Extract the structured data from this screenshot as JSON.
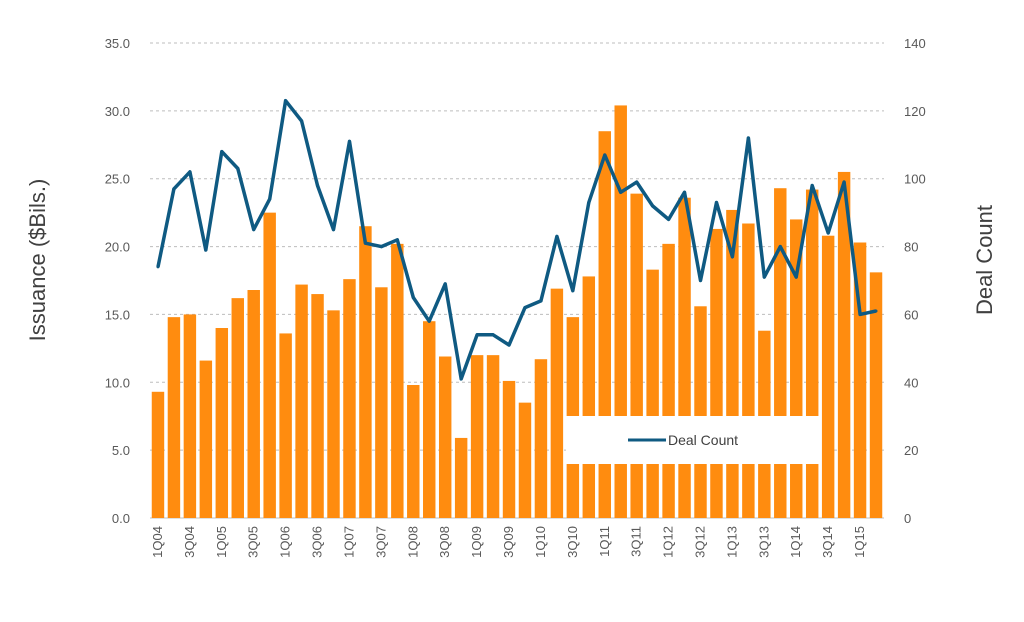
{
  "chart_data": {
    "type": "bar+line",
    "categories": [
      "1Q04",
      "2Q04",
      "3Q04",
      "4Q04",
      "1Q05",
      "2Q05",
      "3Q05",
      "4Q05",
      "1Q06",
      "2Q06",
      "3Q06",
      "4Q06",
      "1Q07",
      "2Q07",
      "3Q07",
      "4Q07",
      "1Q08",
      "2Q08",
      "3Q08",
      "4Q08",
      "1Q09",
      "2Q09",
      "3Q09",
      "4Q09",
      "1Q10",
      "2Q10",
      "3Q10",
      "4Q10",
      "1Q11",
      "2Q11",
      "3Q11",
      "4Q11",
      "1Q12",
      "2Q12",
      "3Q12",
      "4Q12",
      "1Q13",
      "2Q13",
      "3Q13",
      "4Q13",
      "1Q14",
      "2Q14",
      "3Q14",
      "4Q14",
      "1Q15",
      "2Q15"
    ],
    "tick_labels": [
      "1Q04",
      "3Q04",
      "1Q05",
      "3Q05",
      "1Q06",
      "3Q06",
      "1Q07",
      "3Q07",
      "1Q08",
      "3Q08",
      "1Q09",
      "3Q09",
      "1Q10",
      "3Q10",
      "1Q11",
      "3Q11",
      "1Q12",
      "3Q12",
      "1Q13",
      "3Q13",
      "1Q14",
      "3Q14",
      "1Q15"
    ],
    "series": [
      {
        "type": "bar",
        "axis": "left",
        "color": "#FF8C0F",
        "values": [
          9.3,
          14.8,
          15.0,
          11.6,
          14.0,
          16.2,
          16.8,
          22.5,
          13.6,
          17.2,
          16.5,
          15.3,
          17.6,
          21.5,
          17.0,
          20.2,
          9.8,
          14.5,
          11.9,
          5.9,
          12.0,
          12.0,
          10.1,
          8.5,
          11.7,
          16.9,
          14.8,
          17.8,
          28.5,
          30.4,
          23.9,
          18.3,
          20.2,
          23.6,
          15.6,
          21.3,
          22.7,
          21.7,
          13.8,
          24.3,
          22.0,
          24.2,
          20.8,
          25.5,
          20.3,
          18.1
        ]
      },
      {
        "type": "line",
        "axis": "right",
        "name": "Deal Count",
        "color": "#0F5A82",
        "values": [
          74,
          97,
          102,
          79,
          108,
          103,
          85,
          94,
          123,
          117,
          98,
          85,
          111,
          81,
          80,
          82,
          65,
          58,
          69,
          41,
          54,
          54,
          51,
          62,
          64,
          83,
          67,
          93,
          107,
          96,
          99,
          92,
          88,
          96,
          70,
          93,
          77,
          112,
          71,
          80,
          71,
          98,
          84,
          99,
          60,
          61
        ]
      }
    ],
    "y_left": {
      "label": "Issuance ($Bils.)",
      "min": 0,
      "max": 35,
      "step": 5,
      "tick_labels": [
        "0.0",
        "5.0",
        "10.0",
        "15.0",
        "20.0",
        "25.0",
        "30.0",
        "35.0"
      ]
    },
    "y_right": {
      "label": "Deal Count",
      "min": 0,
      "max": 140,
      "step": 20,
      "tick_labels": [
        "0",
        "20",
        "40",
        "60",
        "80",
        "100",
        "120",
        "140"
      ]
    },
    "grid": true,
    "legend": {
      "entries": [
        "Deal Count"
      ],
      "placement": "bottom-right-inside"
    }
  }
}
